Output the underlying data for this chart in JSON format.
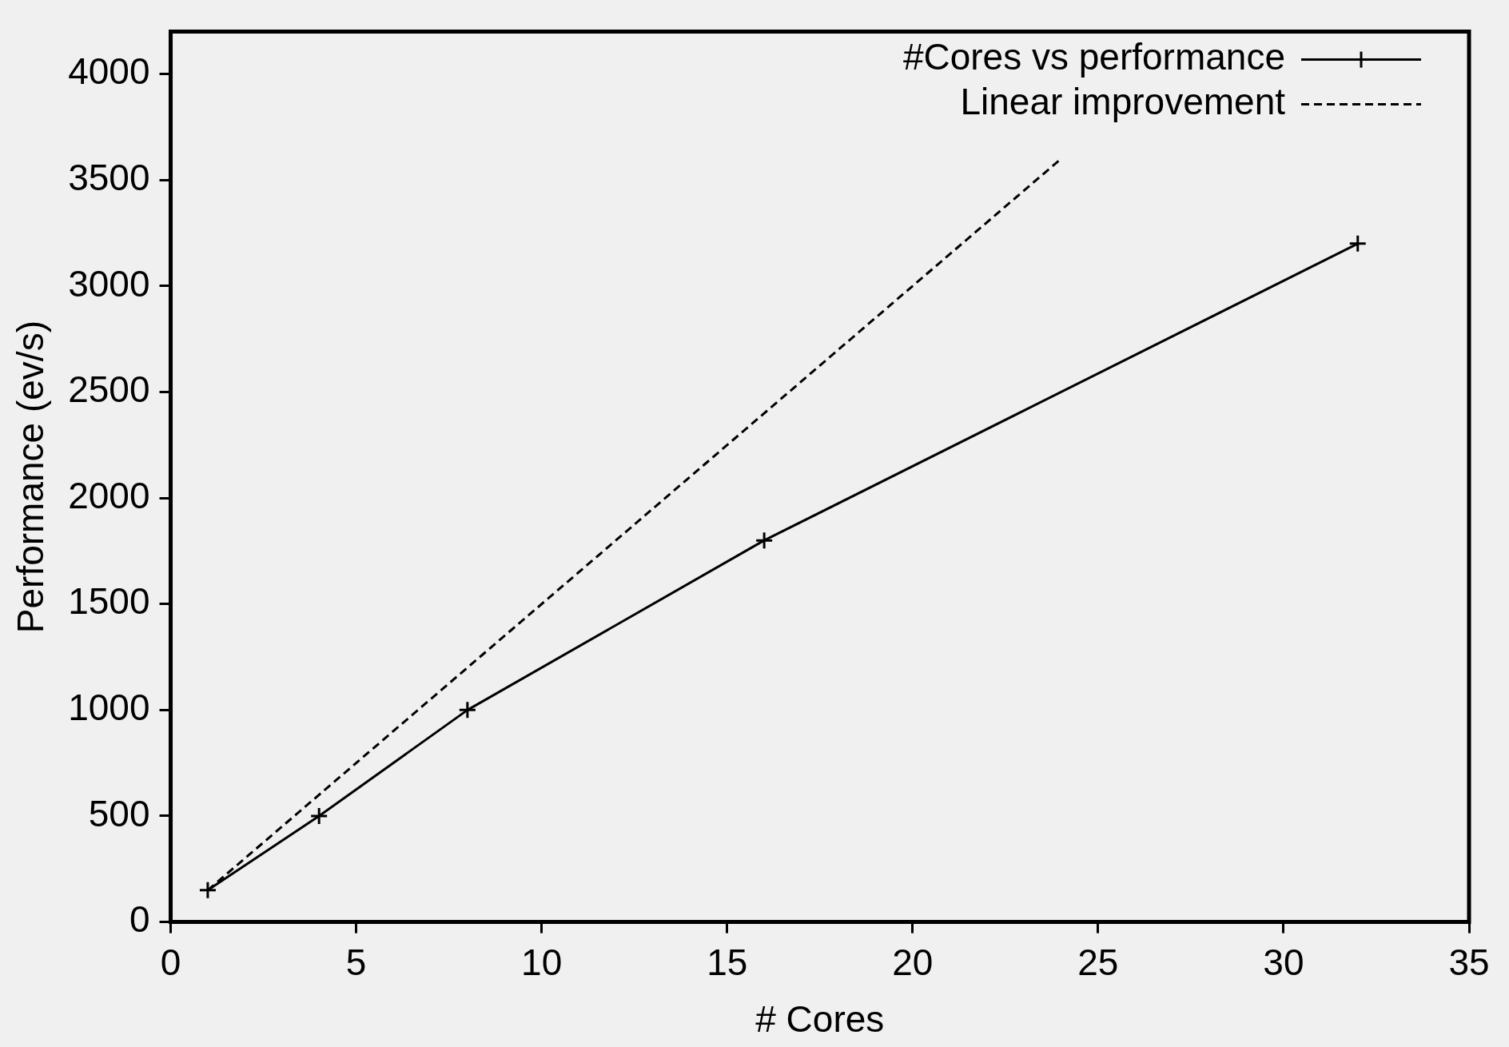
{
  "chart_data": {
    "type": "line",
    "xlabel": "# Cores",
    "ylabel": "Performance (ev/s)",
    "xlim": [
      0,
      35
    ],
    "xticks": [
      0,
      5,
      10,
      15,
      20,
      25,
      30,
      35
    ],
    "ylim": [
      0,
      4200
    ],
    "yticks": [
      0,
      500,
      1000,
      1500,
      2000,
      2500,
      3000,
      3500,
      4000
    ],
    "grid": false,
    "legend": "top right",
    "series": [
      {
        "name": "#Cores vs performance",
        "color": "#000000",
        "x": [
          1,
          4,
          8,
          16,
          32
        ],
        "values": [
          150,
          500,
          1000,
          1800,
          3200
        ],
        "marker": "cross",
        "line_style": "solid"
      },
      {
        "name": "Linear improvement",
        "color": "#000000",
        "x": [
          1,
          24
        ],
        "values": [
          150,
          3600
        ],
        "marker": "none",
        "line_style": "dashed"
      }
    ]
  }
}
